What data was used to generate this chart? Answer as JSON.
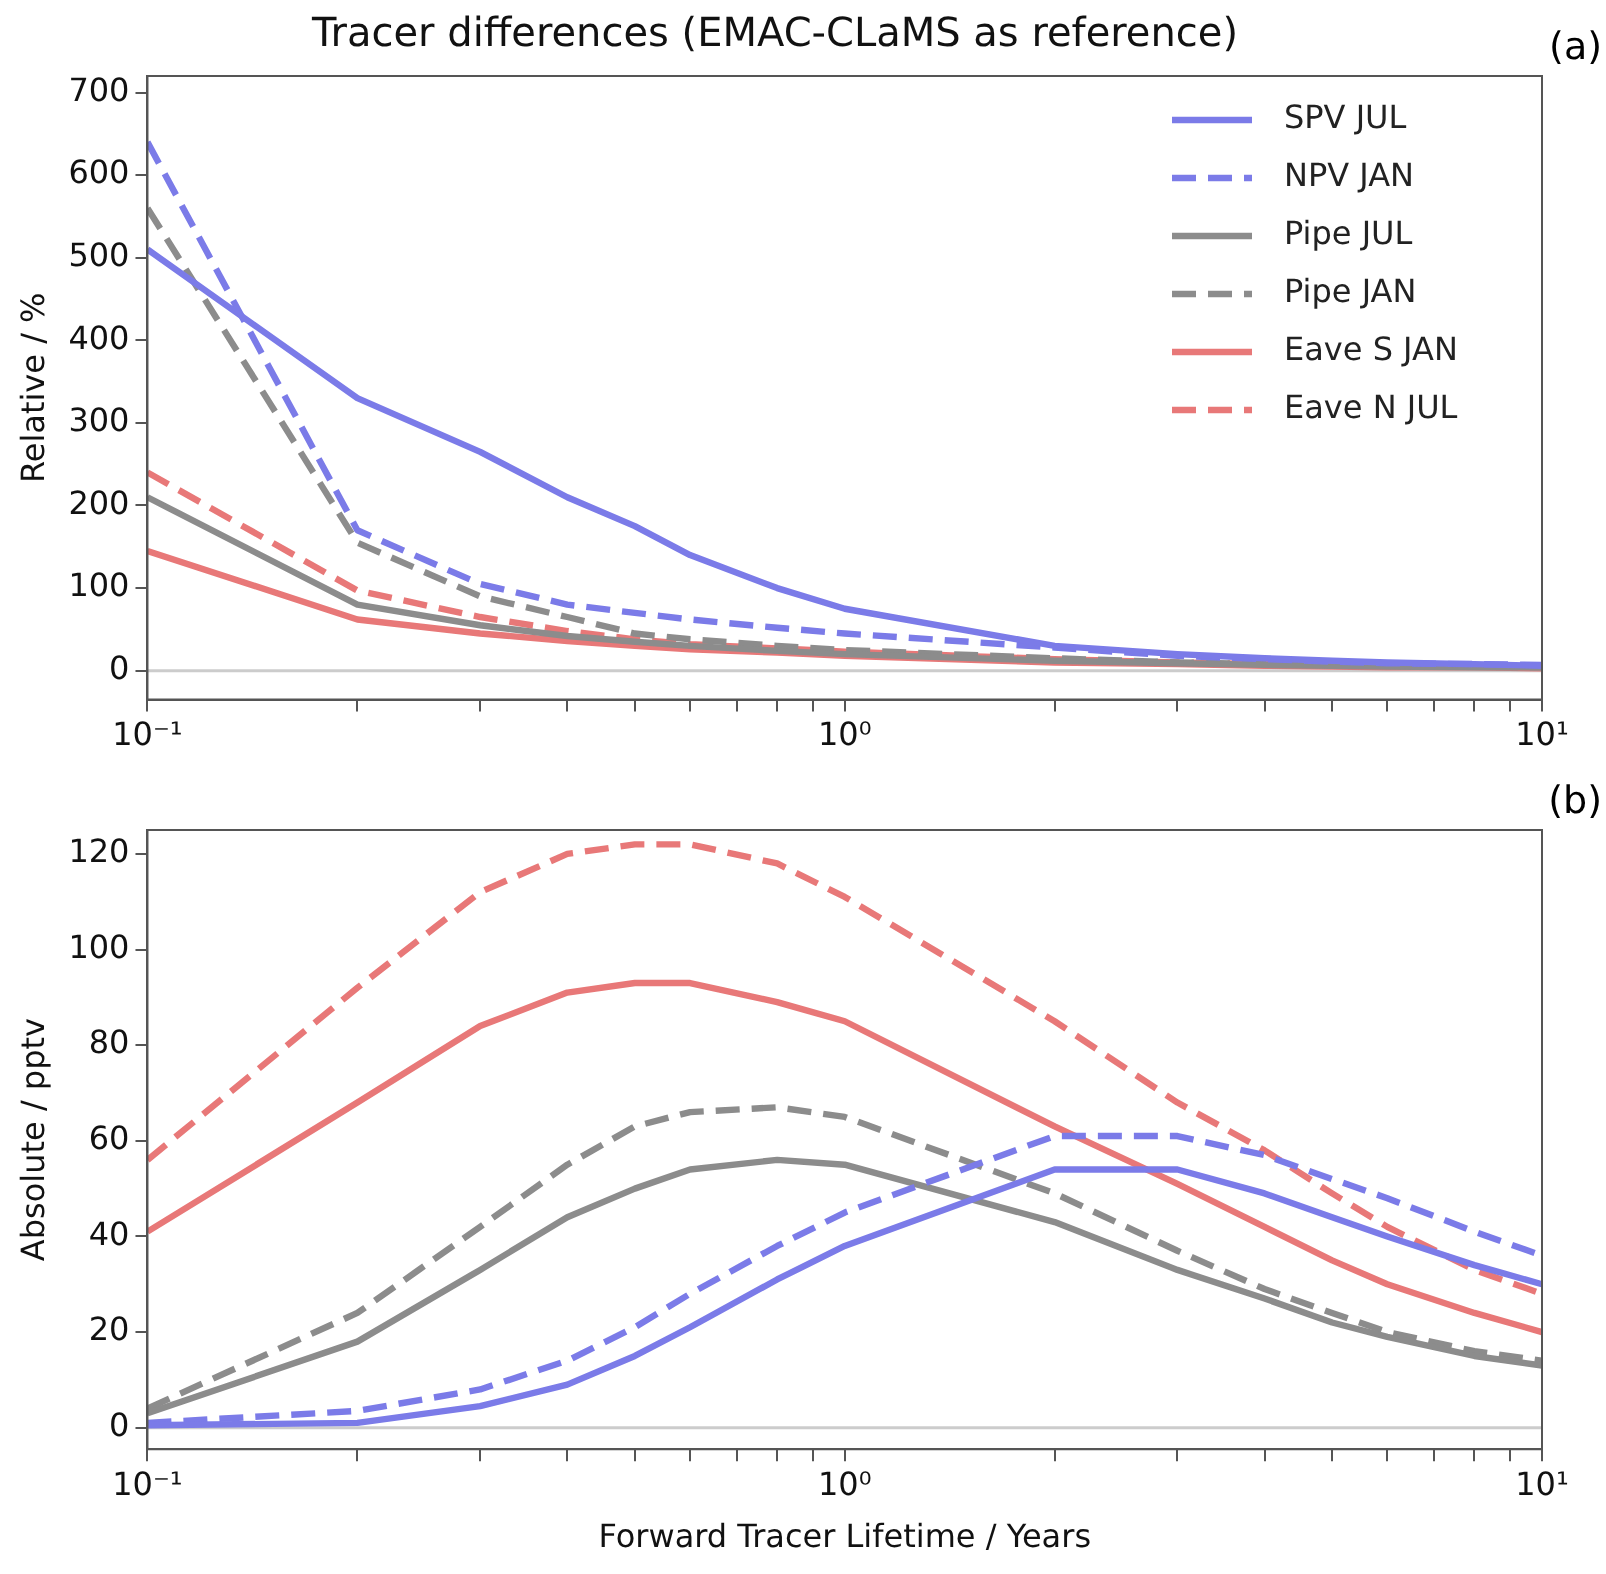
{
  "chart_data": [
    {
      "type": "line",
      "title": "Tracer differences (EMAC-CLaMS as reference)",
      "ylabel": "Relative / %",
      "annotations": [
        "(a)"
      ],
      "legend": "top right",
      "grid": false,
      "marker": "none",
      "x": [
        0.1,
        0.2,
        0.3,
        0.4,
        0.5,
        0.6,
        0.8,
        1,
        2,
        3,
        4,
        5,
        6,
        8,
        10
      ],
      "series": [
        {
          "name": "SPV JUL",
          "color": "#7b7be8",
          "line_style": "solid",
          "values": [
            510,
            330,
            265,
            210,
            175,
            140,
            100,
            75,
            30,
            20,
            15,
            12,
            10,
            8,
            6
          ]
        },
        {
          "name": "NPV JAN",
          "color": "#7b7be8",
          "line_style": "dashed",
          "values": [
            640,
            170,
            105,
            80,
            70,
            62,
            52,
            45,
            28,
            18,
            14,
            11,
            9,
            8,
            7
          ]
        },
        {
          "name": "Pipe JUL",
          "color": "#8c8c8c",
          "line_style": "solid",
          "values": [
            210,
            80,
            55,
            42,
            35,
            30,
            24,
            20,
            12,
            9,
            7,
            6,
            5,
            4,
            4
          ]
        },
        {
          "name": "Pipe JAN",
          "color": "#8c8c8c",
          "line_style": "dashed",
          "values": [
            560,
            155,
            90,
            65,
            45,
            38,
            30,
            25,
            15,
            10,
            8,
            7,
            6,
            5,
            4
          ]
        },
        {
          "name": "Eave S JAN",
          "color": "#e87878",
          "line_style": "solid",
          "values": [
            145,
            62,
            45,
            36,
            30,
            26,
            22,
            18,
            10,
            8,
            6,
            5,
            4,
            4,
            3
          ]
        },
        {
          "name": "Eave N JUL",
          "color": "#e87878",
          "line_style": "dashed",
          "values": [
            240,
            97,
            65,
            48,
            38,
            32,
            27,
            23,
            14,
            10,
            8,
            7,
            6,
            5,
            4
          ]
        }
      ],
      "log": "x",
      "xlim": [
        0.1,
        10
      ],
      "xticks": [
        {
          "value": 0.1,
          "label": "10⁻¹"
        },
        {
          "value": 0.2,
          "label": null
        },
        {
          "value": 0.3,
          "label": null
        },
        {
          "value": 0.4,
          "label": null
        },
        {
          "value": 0.5,
          "label": null
        },
        {
          "value": 0.6,
          "label": null
        },
        {
          "value": 0.7,
          "label": null
        },
        {
          "value": 0.8,
          "label": null
        },
        {
          "value": 0.9,
          "label": null
        },
        {
          "value": 1,
          "label": "10⁰"
        },
        {
          "value": 2,
          "label": null
        },
        {
          "value": 3,
          "label": null
        },
        {
          "value": 4,
          "label": null
        },
        {
          "value": 5,
          "label": null
        },
        {
          "value": 6,
          "label": null
        },
        {
          "value": 7,
          "label": null
        },
        {
          "value": 8,
          "label": null
        },
        {
          "value": 9,
          "label": null
        },
        {
          "value": 10,
          "label": "10¹"
        }
      ],
      "ylim": [
        -35,
        720
      ],
      "yticks": [
        0,
        100,
        200,
        300,
        400,
        500,
        600,
        700
      ],
      "ref_lines": [
        {
          "axis": "y",
          "value": 0,
          "label": null,
          "color": "#cccccc"
        }
      ]
    },
    {
      "type": "line",
      "xlabel": "Forward Tracer Lifetime / Years",
      "ylabel": "Absolute / pptv",
      "annotations": [
        "(b)"
      ],
      "legend": false,
      "grid": false,
      "marker": "none",
      "x": [
        0.1,
        0.2,
        0.3,
        0.4,
        0.5,
        0.6,
        0.8,
        1,
        2,
        3,
        4,
        5,
        6,
        8,
        10
      ],
      "series": [
        {
          "color": "#7b7be8",
          "line_style": "solid",
          "values": [
            0.5,
            1,
            4.5,
            9,
            15,
            21,
            31,
            38,
            54,
            54,
            49,
            44,
            40,
            34,
            30
          ]
        },
        {
          "color": "#7b7be8",
          "line_style": "dashed",
          "values": [
            1,
            3.5,
            8,
            14,
            21,
            28,
            38,
            45,
            61,
            61,
            57,
            52,
            48,
            41,
            36
          ]
        },
        {
          "color": "#8c8c8c",
          "line_style": "solid",
          "values": [
            3,
            18,
            33,
            44,
            50,
            54,
            56,
            55,
            43,
            33,
            27,
            22,
            19,
            15,
            13
          ]
        },
        {
          "color": "#8c8c8c",
          "line_style": "dashed",
          "values": [
            4,
            24,
            42,
            55,
            63,
            66,
            67,
            65,
            49,
            37,
            29,
            24,
            20,
            16,
            14
          ]
        },
        {
          "color": "#e87878",
          "line_style": "solid",
          "values": [
            41,
            68,
            84,
            91,
            93,
            93,
            89,
            85,
            63,
            51,
            42,
            35,
            30,
            24,
            20
          ]
        },
        {
          "color": "#e87878",
          "line_style": "dashed",
          "values": [
            56,
            92,
            112,
            120,
            122,
            122,
            118,
            111,
            85,
            68,
            58,
            49,
            42,
            33,
            28
          ]
        }
      ],
      "log": "x",
      "xlim": [
        0.1,
        10
      ],
      "xticks": [
        {
          "value": 0.1,
          "label": "10⁻¹"
        },
        {
          "value": 0.2,
          "label": null
        },
        {
          "value": 0.3,
          "label": null
        },
        {
          "value": 0.4,
          "label": null
        },
        {
          "value": 0.5,
          "label": null
        },
        {
          "value": 0.6,
          "label": null
        },
        {
          "value": 0.7,
          "label": null
        },
        {
          "value": 0.8,
          "label": null
        },
        {
          "value": 0.9,
          "label": null
        },
        {
          "value": 1,
          "label": "10⁰"
        },
        {
          "value": 2,
          "label": null
        },
        {
          "value": 3,
          "label": null
        },
        {
          "value": 4,
          "label": null
        },
        {
          "value": 5,
          "label": null
        },
        {
          "value": 6,
          "label": null
        },
        {
          "value": 7,
          "label": null
        },
        {
          "value": 8,
          "label": null
        },
        {
          "value": 9,
          "label": null
        },
        {
          "value": 10,
          "label": "10¹"
        }
      ],
      "ylim": [
        -4.5,
        125
      ],
      "yticks": [
        0,
        20,
        40,
        60,
        80,
        100,
        120
      ],
      "ref_lines": [
        {
          "axis": "y",
          "value": 0,
          "label": null,
          "color": "#cccccc"
        }
      ]
    }
  ]
}
